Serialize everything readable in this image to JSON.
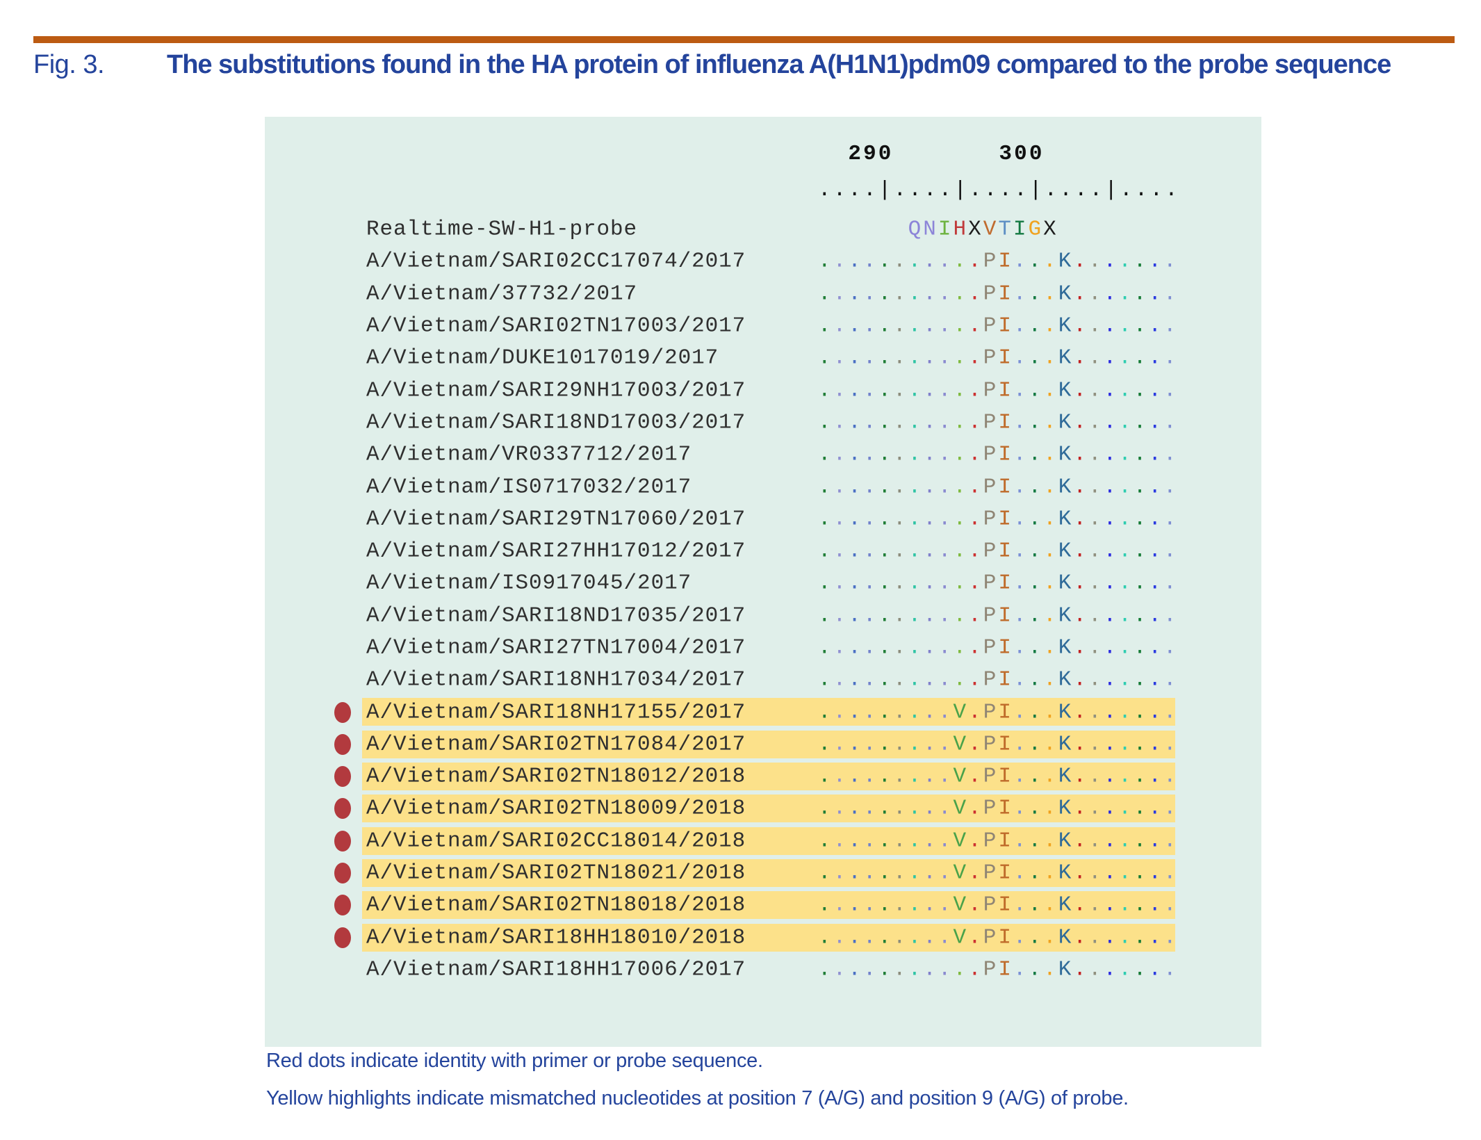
{
  "figure": {
    "label": "Fig. 3.",
    "title": "The substitutions found in the HA protein of influenza A(H1N1)pdm09 compared to the probe sequence"
  },
  "alignment": {
    "ruler_numbers": "  290       300         ",
    "ruler_ticks": "....|....|....|....|....",
    "probe": {
      "label": "Realtime-SW-H1-probe",
      "sequence": "      QNIHXVTIGX        ",
      "letter_colors": [
        "#8c84d8",
        "#8c84d8",
        "#6db33f",
        "#c03a3a",
        "#1c1c1c",
        "#c06b2e",
        "#5d8fc4",
        "#147a42",
        "#f0a21f",
        "#1c1c1c"
      ]
    },
    "sequences": {
      "match": "...........PI...K.......",
      "variant": ".........V.PI...K......."
    },
    "residue_colors": {
      "P": "#8f8574",
      "I": "#bf6b2a",
      "K": "#2f6b99",
      "V": "#4aa24a"
    },
    "column_dot_colors": [
      "#1f7d36",
      "#9090d2",
      "#4a6fc4",
      "#7282cc",
      "#1f7d36",
      "#8c8c7c",
      "#2ec4a4",
      "#8080cc",
      "#8a8ad0",
      "#7fba3f",
      "#cc3030",
      "#8f8574",
      "#bf6b2a",
      "#7b90d6",
      "#147a42",
      "#f0a21f",
      "#2f6b99",
      "#c22020",
      "#90907f",
      "#2a2ae0",
      "#2ecdb0",
      "#147a35",
      "#2a3ae0",
      "#7f8fd2"
    ],
    "rows": [
      {
        "label": "A/Vietnam/SARI02CC17074/2017",
        "variant": false,
        "red_dot": false
      },
      {
        "label": "A/Vietnam/37732/2017",
        "variant": false,
        "red_dot": false
      },
      {
        "label": "A/Vietnam/SARI02TN17003/2017",
        "variant": false,
        "red_dot": false
      },
      {
        "label": "A/Vietnam/DUKE1017019/2017",
        "variant": false,
        "red_dot": false
      },
      {
        "label": "A/Vietnam/SARI29NH17003/2017",
        "variant": false,
        "red_dot": false
      },
      {
        "label": "A/Vietnam/SARI18ND17003/2017",
        "variant": false,
        "red_dot": false
      },
      {
        "label": "A/Vietnam/VR0337712/2017",
        "variant": false,
        "red_dot": false
      },
      {
        "label": "A/Vietnam/IS0717032/2017",
        "variant": false,
        "red_dot": false
      },
      {
        "label": "A/Vietnam/SARI29TN17060/2017",
        "variant": false,
        "red_dot": false
      },
      {
        "label": "A/Vietnam/SARI27HH17012/2017",
        "variant": false,
        "red_dot": false
      },
      {
        "label": "A/Vietnam/IS0917045/2017",
        "variant": false,
        "red_dot": false
      },
      {
        "label": "A/Vietnam/SARI18ND17035/2017",
        "variant": false,
        "red_dot": false
      },
      {
        "label": "A/Vietnam/SARI27TN17004/2017",
        "variant": false,
        "red_dot": false
      },
      {
        "label": "A/Vietnam/SARI18NH17034/2017",
        "variant": false,
        "red_dot": false
      },
      {
        "label": "A/Vietnam/SARI18NH17155/2017",
        "variant": true,
        "red_dot": true
      },
      {
        "label": "A/Vietnam/SARI02TN17084/2017",
        "variant": true,
        "red_dot": true
      },
      {
        "label": "A/Vietnam/SARI02TN18012/2018",
        "variant": true,
        "red_dot": true
      },
      {
        "label": "A/Vietnam/SARI02TN18009/2018",
        "variant": true,
        "red_dot": true
      },
      {
        "label": "A/Vietnam/SARI02CC18014/2018",
        "variant": true,
        "red_dot": true
      },
      {
        "label": "A/Vietnam/SARI02TN18021/2018",
        "variant": true,
        "red_dot": true
      },
      {
        "label": "A/Vietnam/SARI02TN18018/2018",
        "variant": true,
        "red_dot": true
      },
      {
        "label": "A/Vietnam/SARI18HH18010/2018",
        "variant": true,
        "red_dot": true
      },
      {
        "label": "A/Vietnam/SARI18HH17006/2017",
        "variant": false,
        "red_dot": false
      }
    ]
  },
  "footnotes": [
    "Red dots indicate identity with primer or probe sequence.",
    "Yellow highlights indicate mismatched nucleotides at position 7 (A/G) and position 9 (A/G) of probe."
  ],
  "colors": {
    "title-blue": "#24449c",
    "rule-orange": "#bc5b12",
    "panel-mint": "#e0efea",
    "highlight-yellow": "#fce18a",
    "dot-red": "#b23a3e"
  }
}
